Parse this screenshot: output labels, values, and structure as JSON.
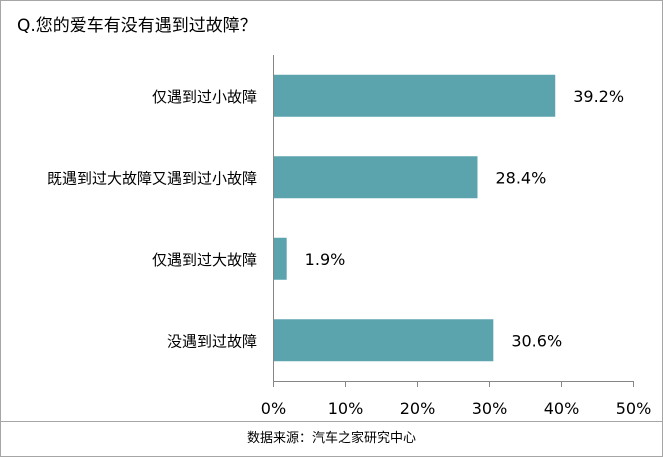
{
  "chart_data": {
    "type": "bar",
    "orientation": "horizontal",
    "title": "Q.您的爱车有没有遇到过故障？",
    "categories": [
      "仅遇到过小故障",
      "既遇到过大故障又遇到过小故障",
      "仅遇到过大故障",
      "没遇到过故障"
    ],
    "values": [
      39.2,
      28.4,
      1.9,
      30.6
    ],
    "data_labels": [
      "39.2%",
      "28.4%",
      "1.9%",
      "30.6%"
    ],
    "xlim": [
      0,
      50
    ],
    "x_ticks": [
      "0%",
      "10%",
      "20%",
      "30%",
      "40%",
      "50%"
    ],
    "xlabel": "",
    "ylabel": "",
    "grid": false,
    "legend": "none",
    "bar_color": "#5ba3ad"
  },
  "footer": {
    "source": "数据来源：汽车之家研究中心"
  }
}
